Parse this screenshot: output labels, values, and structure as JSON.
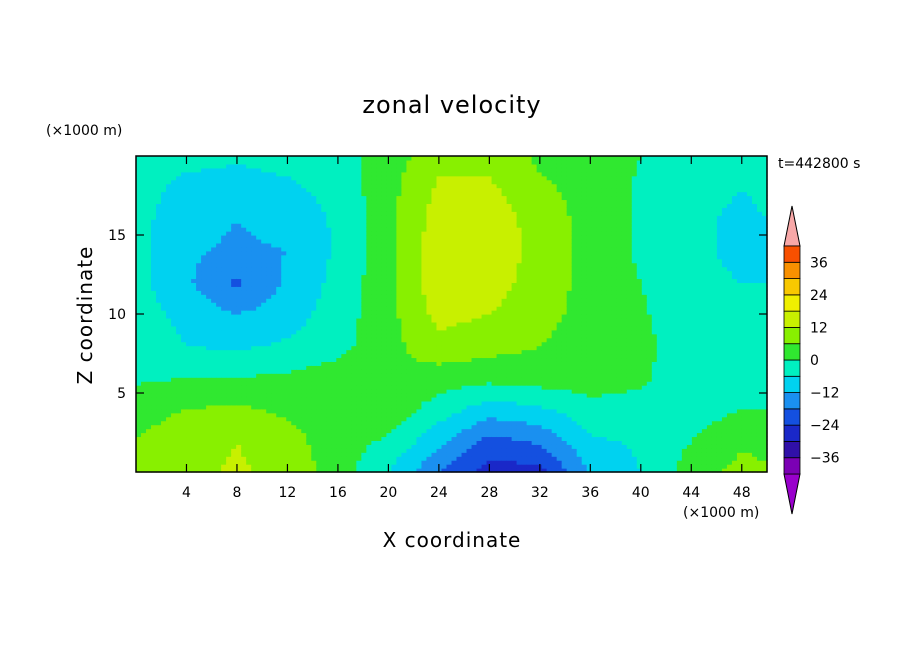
{
  "chart_data": {
    "type": "heatmap",
    "title": "zonal velocity",
    "xlabel": "X coordinate",
    "ylabel": "Z coordinate",
    "x_unit": "(×1000 m)",
    "y_unit": "(×1000 m)",
    "time_label": "t=442800 s",
    "xlim": [
      0,
      50
    ],
    "ylim": [
      0,
      20
    ],
    "x_ticks": [
      4,
      8,
      12,
      16,
      20,
      24,
      28,
      32,
      36,
      40,
      44,
      48
    ],
    "y_ticks": [
      5,
      10,
      15
    ],
    "colorbar": {
      "labels": [
        36,
        24,
        12,
        0,
        -12,
        -24,
        -36
      ],
      "levels": [
        -42,
        -36,
        -30,
        -24,
        -18,
        -12,
        -6,
        0,
        6,
        12,
        18,
        24,
        30,
        36,
        42
      ],
      "colors": [
        "#7b00b4",
        "#3010a8",
        "#1a28c8",
        "#1450e0",
        "#1a90f0",
        "#00d2f0",
        "#00f0c0",
        "#30e830",
        "#88f000",
        "#c8f000",
        "#f0f000",
        "#f8c800",
        "#f89000",
        "#f85000",
        "#e82000",
        "#f8a8a8"
      ],
      "under_color": "#9900cc",
      "over_color": "#f8a8a8"
    },
    "field": [
      {
        "x": 0,
        "z": [
          8,
          6,
          4,
          -1,
          -2,
          -3,
          -4,
          -4,
          -4,
          -3,
          -2
        ]
      },
      {
        "x": 4,
        "z": [
          10,
          9,
          6,
          0,
          -6,
          -8,
          -11,
          -11,
          -10,
          -8,
          -4
        ]
      },
      {
        "x": 8,
        "z": [
          13,
          12,
          7,
          0,
          -7,
          -12,
          -19,
          -13,
          -12,
          -9,
          -5
        ]
      },
      {
        "x": 12,
        "z": [
          10,
          8,
          5,
          1,
          -5,
          -9,
          -11,
          -12,
          -10,
          -7,
          -4
        ]
      },
      {
        "x": 16,
        "z": [
          3,
          3,
          3,
          3,
          -2,
          -3,
          -4,
          -5,
          -5,
          -4,
          -3
        ]
      },
      {
        "x": 20,
        "z": [
          -6,
          -1,
          4,
          6,
          4,
          4,
          4,
          4,
          4,
          4,
          3
        ]
      },
      {
        "x": 24,
        "z": [
          -18,
          -10,
          -3,
          3,
          10,
          14,
          16,
          16,
          15,
          13,
          10
        ]
      },
      {
        "x": 28,
        "z": [
          -27,
          -20,
          -9,
          2,
          8,
          12,
          15,
          17,
          16,
          13,
          10
        ]
      },
      {
        "x": 32,
        "z": [
          -26,
          -17,
          -7,
          3,
          6,
          8,
          9,
          9,
          9,
          7,
          5
        ]
      },
      {
        "x": 36,
        "z": [
          -12,
          -7,
          -2,
          3,
          3,
          4,
          4,
          4,
          4,
          4,
          4
        ]
      },
      {
        "x": 40,
        "z": [
          -6,
          -5,
          -2,
          1,
          2,
          1,
          0,
          -1,
          -1,
          -1,
          0
        ]
      },
      {
        "x": 44,
        "z": [
          3,
          0,
          -3,
          -4,
          -4,
          -5,
          -5,
          -5,
          -5,
          -4,
          -4
        ]
      },
      {
        "x": 48,
        "z": [
          8,
          5,
          0,
          -5,
          -6,
          -6,
          -6,
          -7,
          -7,
          -6,
          -5
        ]
      },
      {
        "x": 50,
        "z": [
          7,
          4,
          0,
          -4,
          -5,
          -6,
          -6,
          -6,
          -6,
          -5,
          -5
        ]
      }
    ],
    "field_z": [
      0,
      2,
      4,
      6,
      8,
      10,
      12,
      14,
      16,
      18,
      20
    ],
    "grid": false,
    "legend": "right colorbar"
  }
}
